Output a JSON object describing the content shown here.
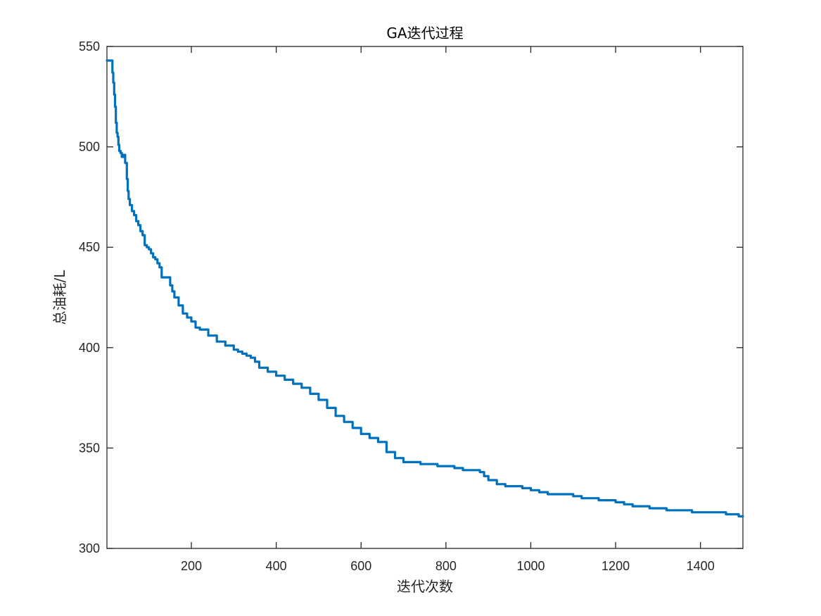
{
  "chart_data": {
    "type": "line",
    "title": "GA迭代过程",
    "xlabel": "迭代次数",
    "ylabel": "总油耗/L",
    "xlim": [
      1,
      1500
    ],
    "ylim": [
      300,
      550
    ],
    "xticks": [
      200,
      400,
      600,
      800,
      1000,
      1200,
      1400
    ],
    "yticks": [
      300,
      350,
      400,
      450,
      500,
      550
    ],
    "grid": false,
    "series": [
      {
        "color": "#0072BD",
        "x": [
          1,
          12,
          14,
          16,
          18,
          20,
          22,
          24,
          26,
          28,
          30,
          33,
          36,
          40,
          44,
          48,
          50,
          52,
          55,
          60,
          65,
          70,
          75,
          80,
          85,
          90,
          95,
          100,
          105,
          110,
          115,
          120,
          125,
          130,
          140,
          150,
          155,
          160,
          170,
          180,
          190,
          200,
          210,
          220,
          240,
          260,
          280,
          300,
          310,
          320,
          330,
          340,
          350,
          360,
          380,
          400,
          420,
          440,
          460,
          480,
          500,
          520,
          540,
          560,
          580,
          600,
          620,
          640,
          660,
          680,
          700,
          720,
          740,
          760,
          780,
          800,
          820,
          840,
          860,
          880,
          890,
          900,
          920,
          940,
          960,
          980,
          1000,
          1020,
          1040,
          1060,
          1080,
          1100,
          1120,
          1140,
          1160,
          1180,
          1200,
          1220,
          1240,
          1260,
          1280,
          1300,
          1320,
          1340,
          1360,
          1380,
          1400,
          1420,
          1440,
          1460,
          1480,
          1490,
          1500
        ],
        "y": [
          543,
          543,
          537,
          532,
          526,
          520,
          512,
          507,
          505,
          501,
          498,
          497,
          495,
          496,
          492,
          484,
          478,
          474,
          471,
          468,
          466,
          463,
          461,
          458,
          456,
          451,
          450,
          449,
          447,
          445,
          444,
          442,
          440,
          435,
          435,
          431,
          428,
          425,
          421,
          417,
          415,
          413,
          410,
          409,
          406,
          403,
          401,
          399,
          398,
          397,
          396,
          395,
          393,
          390,
          388,
          386,
          384,
          382,
          380,
          377,
          374,
          370,
          366,
          363,
          360,
          357,
          355,
          353,
          348,
          345,
          343,
          343,
          342,
          342,
          341,
          341,
          340,
          339,
          339,
          338,
          336,
          334,
          332,
          331,
          331,
          330,
          329,
          328,
          327,
          327,
          327,
          326,
          325,
          325,
          324,
          324,
          323,
          322,
          321,
          321,
          320,
          320,
          319,
          319,
          319,
          318,
          318,
          318,
          318,
          317,
          317,
          316,
          316
        ]
      }
    ]
  }
}
